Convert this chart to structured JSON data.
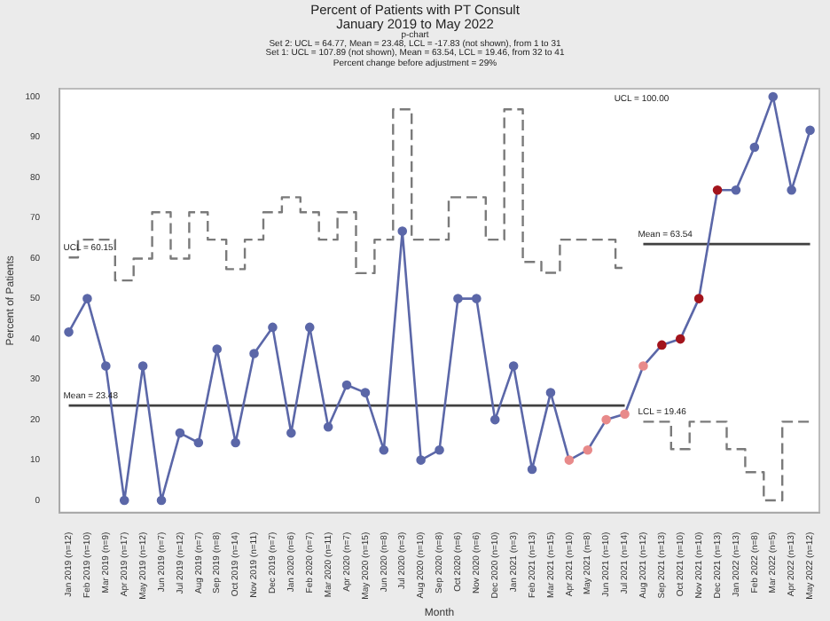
{
  "chart_data": {
    "type": "line",
    "title": "Percent of Patients with PT Consult",
    "subtitle": "January 2019 to May 2022",
    "xlabel": "Month",
    "ylabel": "Percent of Patients",
    "categories": [
      "Jan 2019 (n=12)",
      "Feb 2019 (n=10)",
      "Mar 2019 (n=9)",
      "Apr 2019 (n=17)",
      "May 2019 (n=12)",
      "Jun 2019 (n=7)",
      "Jul 2019 (n=12)",
      "Aug 2019 (n=7)",
      "Sep 2019 (n=8)",
      "Oct 2019 (n=14)",
      "Nov 2019 (n=11)",
      "Dec 2019 (n=7)",
      "Jan 2020 (n=6)",
      "Feb 2020 (n=7)",
      "Mar 2020 (n=11)",
      "Apr 2020 (n=7)",
      "May 2020 (n=15)",
      "Jun 2020 (n=8)",
      "Jul 2020 (n=3)",
      "Aug 2020 (n=10)",
      "Sep 2020 (n=8)",
      "Oct 2020 (n=6)",
      "Nov 2020 (n=6)",
      "Dec 2020 (n=10)",
      "Jan 2021 (n=3)",
      "Feb 2021 (n=13)",
      "Mar 2021 (n=15)",
      "Apr 2021 (n=10)",
      "May 2021 (n=8)",
      "Jun 2021 (n=10)",
      "Jul 2021 (n=14)",
      "Aug 2021 (n=12)",
      "Sep 2021 (n=13)",
      "Oct 2021 (n=10)",
      "Nov 2021 (n=10)",
      "Dec 2021 (n=13)",
      "Jan 2022 (n=13)",
      "Feb 2022 (n=8)",
      "Mar 2022 (n=5)",
      "Apr 2022 (n=13)",
      "May 2022 (n=12)"
    ],
    "series": [
      {
        "color": "#5b67a8",
        "marker": "circle",
        "colors": [
          "#5b67a8",
          "#5b67a8",
          "#5b67a8",
          "#5b67a8",
          "#5b67a8",
          "#5b67a8",
          "#5b67a8",
          "#5b67a8",
          "#5b67a8",
          "#5b67a8",
          "#5b67a8",
          "#5b67a8",
          "#5b67a8",
          "#5b67a8",
          "#5b67a8",
          "#5b67a8",
          "#5b67a8",
          "#5b67a8",
          "#5b67a8",
          "#5b67a8",
          "#5b67a8",
          "#5b67a8",
          "#5b67a8",
          "#5b67a8",
          "#5b67a8",
          "#5b67a8",
          "#5b67a8",
          "#e88a8a",
          "#e88a8a",
          "#e88a8a",
          "#e88a8a",
          "#e88a8a",
          "#a3141c",
          "#a3141c",
          "#a3141c",
          "#a3141c",
          "#5b67a8",
          "#5b67a8",
          "#5b67a8",
          "#5b67a8",
          "#5b67a8"
        ],
        "values": [
          41.7,
          50,
          33.3,
          0,
          33.3,
          0,
          16.7,
          14.3,
          37.5,
          14.3,
          36.4,
          42.9,
          16.7,
          42.9,
          18.2,
          28.6,
          26.7,
          12.5,
          66.7,
          10,
          12.5,
          50,
          50,
          20,
          33.3,
          7.7,
          26.7,
          10,
          12.5,
          20,
          21.4,
          33.3,
          38.5,
          40,
          50,
          76.9,
          76.9,
          87.5,
          100,
          76.9,
          91.7
        ]
      },
      {
        "type": "step",
        "name": "UCL = 60.15",
        "color": "#7a7a7a",
        "line_style": "dashed",
        "marker": "none",
        "values": [
          60.2,
          64.6,
          64.6,
          54.5,
          59.9,
          71.4,
          59.9,
          71.4,
          64.6,
          57.3,
          64.6,
          71.4,
          75.1,
          71.4,
          64.6,
          71.4,
          56.3,
          64.6,
          96.9,
          64.6,
          64.6,
          75.1,
          75.1,
          64.6,
          96.9,
          59.1,
          56.4,
          64.6,
          64.6,
          64.6,
          57.6,
          null,
          null,
          null,
          null,
          null,
          null,
          null,
          null,
          null,
          null
        ]
      },
      {
        "type": "line",
        "name": "Mean = 23.48",
        "color": "#404040",
        "line_style": "solid",
        "marker": "none",
        "values": [
          23.5,
          23.5,
          23.5,
          23.5,
          23.5,
          23.5,
          23.5,
          23.5,
          23.5,
          23.5,
          23.5,
          23.5,
          23.5,
          23.5,
          23.5,
          23.5,
          23.5,
          23.5,
          23.5,
          23.5,
          23.5,
          23.5,
          23.5,
          23.5,
          23.5,
          23.5,
          23.5,
          23.5,
          23.5,
          23.5,
          23.5,
          null,
          null,
          null,
          null,
          null,
          null,
          null,
          null,
          null,
          null
        ]
      },
      {
        "type": "line",
        "name": "Mean = 63.54",
        "color": "#404040",
        "line_style": "solid",
        "marker": "none",
        "values": [
          null,
          null,
          null,
          null,
          null,
          null,
          null,
          null,
          null,
          null,
          null,
          null,
          null,
          null,
          null,
          null,
          null,
          null,
          null,
          null,
          null,
          null,
          null,
          null,
          null,
          null,
          null,
          null,
          null,
          null,
          null,
          63.5,
          63.5,
          63.5,
          63.5,
          63.5,
          63.5,
          63.5,
          63.5,
          63.5,
          63.5
        ]
      },
      {
        "type": "step",
        "name": "LCL = 19.46",
        "color": "#7a7a7a",
        "line_style": "dashed",
        "marker": "none",
        "values": [
          null,
          null,
          null,
          null,
          null,
          null,
          null,
          null,
          null,
          null,
          null,
          null,
          null,
          null,
          null,
          null,
          null,
          null,
          null,
          null,
          null,
          null,
          null,
          null,
          null,
          null,
          null,
          null,
          null,
          null,
          null,
          19.5,
          19.5,
          12.7,
          19.5,
          19.5,
          12.7,
          7,
          0,
          19.5,
          19.5
        ]
      }
    ],
    "annotations": [
      "p-chart",
      "Set 2: UCL = 64.77, Mean = 23.48, LCL = -17.83 (not shown), from 1 to 31",
      "Set 1: UCL = 107.89 (not shown), Mean = 63.54, LCL = 19.46, from 32 to 41",
      "Percent change before adjustment = 29%",
      "UCL = 100.00"
    ],
    "ylim": [
      -3,
      102
    ],
    "yticks": [
      0,
      10,
      20,
      30,
      40,
      50,
      60,
      70,
      80,
      90,
      100
    ],
    "grid": false,
    "legend": false
  }
}
